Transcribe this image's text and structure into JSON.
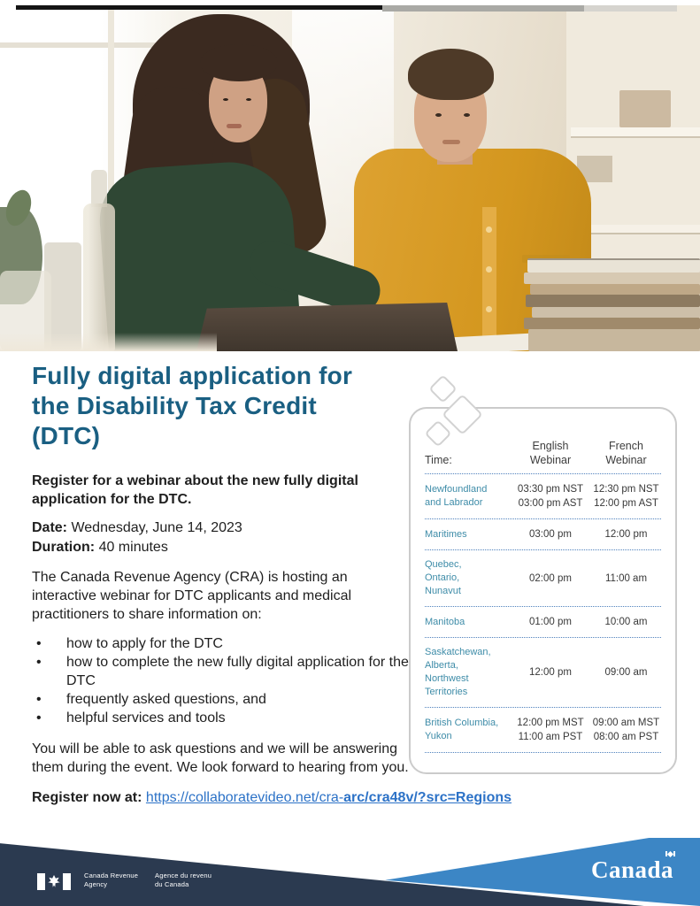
{
  "title_lines": [
    "Fully digital application for",
    "the Disability Tax Credit",
    "(DTC)"
  ],
  "intro": "Register for a webinar about the new fully digital application for the DTC.",
  "details": {
    "date_label": "Date:",
    "date_value": "Wednesday, June 14, 2023",
    "duration_label": "Duration:",
    "duration_value": "40 minutes"
  },
  "description": "The Canada Revenue Agency (CRA) is hosting an interactive webinar for DTC applicants and medical practitioners to share information on:",
  "bullets": [
    "how to apply for the DTC",
    "how to complete the new fully digital application for the DTC",
    "frequently asked questions, and",
    "helpful services and tools"
  ],
  "closing": "You will be able to ask questions and we will be answering them during the event. We look forward to hearing from you.",
  "register": {
    "label": "Register now at:",
    "link_regular": "https://collaboratevideo.net/cra-",
    "link_bold": "arc/cra48v/?src=Regions"
  },
  "schedule": {
    "columns": {
      "time": "Time:",
      "english": "English Webinar",
      "french": "French Webinar"
    },
    "rows": [
      {
        "region": [
          "Newfoundland",
          "and Labrador"
        ],
        "english": [
          "03:30 pm NST",
          "03:00 pm AST"
        ],
        "french": [
          "12:30 pm NST",
          "12:00 pm AST"
        ]
      },
      {
        "region": [
          "Maritimes"
        ],
        "english": [
          "03:00 pm"
        ],
        "french": [
          "12:00 pm"
        ]
      },
      {
        "region": [
          "Quebec,",
          "Ontario,",
          "Nunavut"
        ],
        "english": [
          "02:00 pm"
        ],
        "french": [
          "11:00 am"
        ]
      },
      {
        "region": [
          "Manitoba"
        ],
        "english": [
          "01:00 pm"
        ],
        "french": [
          "10:00 am"
        ]
      },
      {
        "region": [
          "Saskatchewan,",
          "Alberta,",
          "Northwest",
          "Territories"
        ],
        "english": [
          "12:00 pm"
        ],
        "french": [
          "09:00 am"
        ]
      },
      {
        "region": [
          "British Columbia,",
          "Yukon"
        ],
        "english": [
          "12:00 pm MST",
          "11:00 am PST"
        ],
        "french": [
          "09:00 am MST",
          "08:00 am PST"
        ]
      }
    ]
  },
  "footer": {
    "dept_en": [
      "Canada Revenue",
      "Agency"
    ],
    "dept_fr": [
      "Agence du revenu",
      "du Canada"
    ],
    "wordmark": "Canada"
  },
  "colors": {
    "heading": "#1a5f82",
    "region_name": "#3e8ca8",
    "dotted_rule": "#4f81bd",
    "link": "#2c72c7",
    "footer_navy": "#2b3a50",
    "footer_blue": "#3c86c5"
  }
}
